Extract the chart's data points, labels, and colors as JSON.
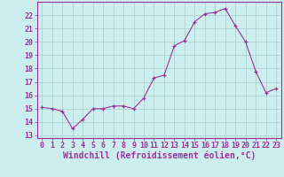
{
  "x": [
    0,
    1,
    2,
    3,
    4,
    5,
    6,
    7,
    8,
    9,
    10,
    11,
    12,
    13,
    14,
    15,
    16,
    17,
    18,
    19,
    20,
    21,
    22,
    23
  ],
  "y": [
    15.1,
    15.0,
    14.8,
    13.5,
    14.2,
    15.0,
    15.0,
    15.2,
    15.2,
    15.0,
    15.8,
    17.3,
    17.5,
    19.7,
    20.1,
    21.5,
    22.1,
    22.2,
    22.5,
    21.2,
    20.0,
    17.8,
    16.2,
    16.5
  ],
  "line_color": "#993399",
  "marker": "+",
  "marker_color": "#993399",
  "bg_color": "#cceeee",
  "grid_color": "#aacccc",
  "xlabel": "Windchill (Refroidissement éolien,°C)",
  "xlabel_color": "#993399",
  "xlabel_fontsize": 7.0,
  "yticks": [
    13,
    14,
    15,
    16,
    17,
    18,
    19,
    20,
    21,
    22
  ],
  "ylim": [
    12.8,
    23.0
  ],
  "xlim": [
    -0.5,
    23.5
  ],
  "tick_fontsize": 6.0,
  "tick_color": "#993399",
  "spine_color": "#993399"
}
